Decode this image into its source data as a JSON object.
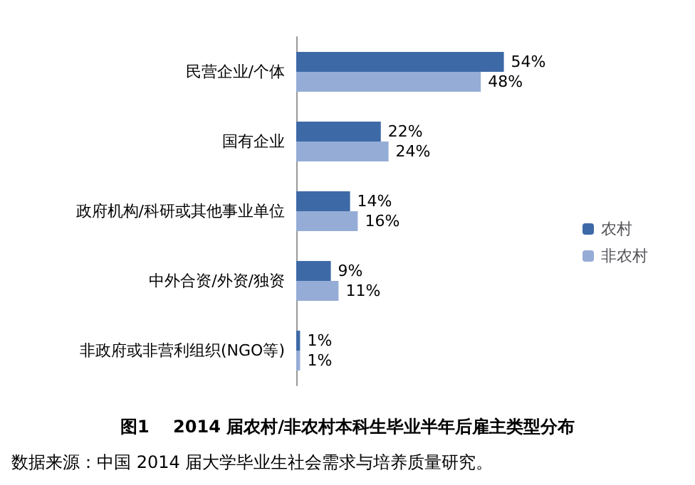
{
  "chart_data": {
    "type": "bar",
    "orientation": "horizontal",
    "title": "图1    2014 届农村/非农村本科生毕业半年后雇主类型分布",
    "annotations": [
      "数据来源：中国 2014 届大学毕业生社会需求与培养质量研究。"
    ],
    "categories": [
      "民营企业/个体",
      "国有企业",
      "政府机构/科研或其他事业单位",
      "中外合资/外资/独资",
      "非政府或非营利组织(NGO等)"
    ],
    "series": [
      {
        "name": "农村",
        "color": "#3d6aa7",
        "values": [
          54,
          22,
          14,
          9,
          1
        ],
        "value_labels": [
          "54%",
          "22%",
          "14%",
          "9%",
          "1%"
        ]
      },
      {
        "name": "非农村",
        "color": "#95acd6",
        "values": [
          48,
          24,
          16,
          11,
          1
        ],
        "value_labels": [
          "48%",
          "24%",
          "16%",
          "11%",
          "1%"
        ]
      }
    ],
    "legend": "right",
    "tick_labels": "y"
  }
}
